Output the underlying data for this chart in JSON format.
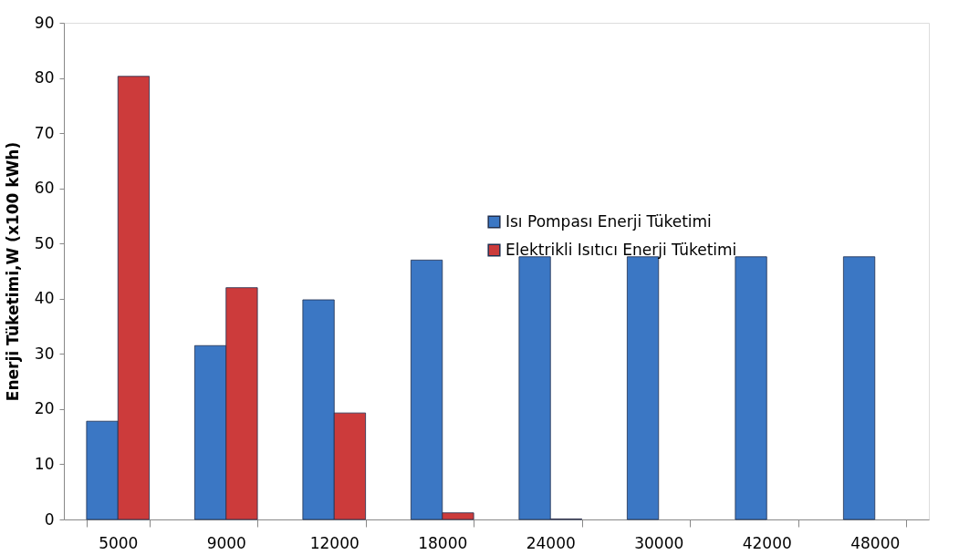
{
  "chart_data": {
    "type": "bar",
    "ylabel": "Enerji Tüketimi,W (x100 kWh)",
    "categories": [
      "5000",
      "9000",
      "12000",
      "18000",
      "24000",
      "30000",
      "42000",
      "48000"
    ],
    "series": [
      {
        "name": "Isı Pompası Enerji Tüketimi",
        "color": "#3b77c4",
        "values": [
          17.8,
          31.5,
          39.8,
          47.0,
          47.6,
          47.6,
          47.6,
          47.6
        ]
      },
      {
        "name": "Elektrikli Isıtıcı Enerji Tüketimi",
        "color": "#cc3b3b",
        "values": [
          80.3,
          42.0,
          19.3,
          1.2,
          0.1,
          null,
          null,
          null
        ]
      }
    ],
    "ylim": [
      0,
      90
    ],
    "yticks": [
      0,
      10,
      20,
      30,
      40,
      50,
      60,
      70,
      80,
      90
    ],
    "grid": false,
    "legend": "top right"
  }
}
